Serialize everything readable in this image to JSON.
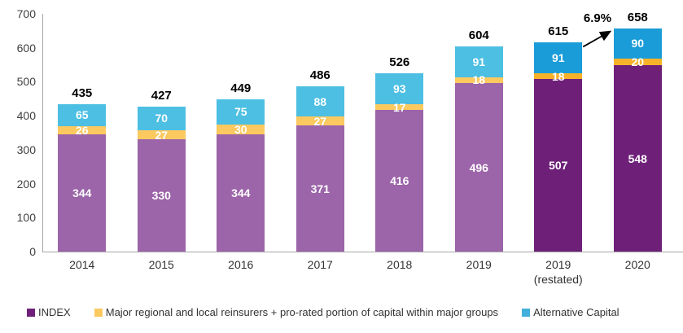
{
  "chart_data": {
    "type": "bar",
    "stacked": true,
    "title": "",
    "xlabel": "",
    "ylabel": "",
    "categories": [
      "2014",
      "2015",
      "2016",
      "2017",
      "2018",
      "2019",
      "2019 (restated)",
      "2020"
    ],
    "category_labels": [
      [
        "2014"
      ],
      [
        "2015"
      ],
      [
        "2016"
      ],
      [
        "2017"
      ],
      [
        "2018"
      ],
      [
        "2019"
      ],
      [
        "2019",
        "(restated)"
      ],
      [
        "2020"
      ]
    ],
    "series": [
      {
        "name": "INDEX",
        "values": [
          344,
          330,
          344,
          371,
          416,
          496,
          507,
          548
        ],
        "color_light": "#9C64A9",
        "color_dark": "#6E2079"
      },
      {
        "name": "Major regional and local reinsurers + pro-rated portion of capital within major groups",
        "values": [
          26,
          27,
          30,
          27,
          17,
          18,
          18,
          20
        ],
        "color_light": "#FBC95F",
        "color_dark": "#F8B229"
      },
      {
        "name": "Alternative Capital",
        "values": [
          65,
          70,
          75,
          88,
          93,
          91,
          91,
          90
        ],
        "color_light": "#4CBFE3",
        "color_dark": "#1A9CD8"
      }
    ],
    "totals": [
      435,
      427,
      449,
      486,
      526,
      604,
      615,
      658
    ],
    "highlight_indices": [
      6,
      7
    ],
    "ylim": [
      0,
      700
    ],
    "yticks": [
      0,
      100,
      200,
      300,
      400,
      500,
      600,
      700
    ],
    "grid": false,
    "legend_position": "bottom",
    "annotation": {
      "label": "6.9%",
      "from": "2019 (restated)",
      "to": "2020"
    }
  },
  "legend": {
    "items": [
      {
        "label": "INDEX",
        "color": "#6E2079"
      },
      {
        "label": "Major regional and local reinsurers + pro-rated portion of capital within major groups",
        "color": "#FBC95F"
      },
      {
        "label": "Alternative Capital",
        "color": "#41AFDB"
      }
    ]
  }
}
